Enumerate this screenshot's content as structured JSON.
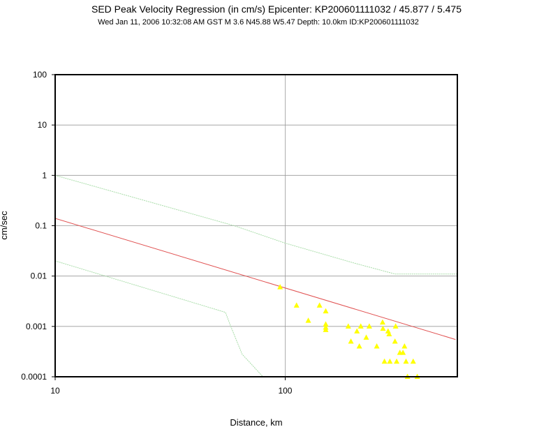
{
  "chart_data": {
    "type": "scatter",
    "title": "SED Peak Velocity Regression (in cm/s) Epicenter: KP200601111032 / 45.877 / 5.475",
    "subtitle": "Wed Jan 11, 2006 10:32:08 AM GST    M 3.6    N45.88 W5.47    Depth: 10.0km    ID:KP200601111032",
    "xlabel": "Distance, km",
    "ylabel": "cm/sec",
    "xscale": "log",
    "yscale": "log",
    "xlim": [
      10,
      560
    ],
    "ylim": [
      0.0001,
      100
    ],
    "grid": true,
    "x_ticks": [
      "10",
      "100"
    ],
    "y_ticks": [
      "0.0001",
      "0.001",
      "0.01",
      "0.1",
      "1",
      "10",
      "100"
    ],
    "series": [
      {
        "kind": "regression-line",
        "color": "#e05050",
        "points": [
          [
            10,
            0.14
          ],
          [
            550,
            0.00055
          ]
        ]
      },
      {
        "kind": "upper-bound",
        "color": "#a8dca8",
        "points": [
          [
            10,
            1.0
          ],
          [
            60,
            0.1
          ],
          [
            100,
            0.045
          ],
          [
            200,
            0.018
          ],
          [
            300,
            0.011
          ],
          [
            560,
            0.011
          ]
        ]
      },
      {
        "kind": "lower-bound",
        "color": "#a8dca8",
        "points": [
          [
            10,
            0.02
          ],
          [
            55,
            0.0019
          ],
          [
            58,
            0.001
          ],
          [
            65,
            0.00028
          ],
          [
            80,
            0.0001
          ]
        ]
      },
      {
        "kind": "observations",
        "color": "#ffff00",
        "marker": "triangle",
        "points": [
          [
            95,
            0.006
          ],
          [
            112,
            0.0026
          ],
          [
            126,
            0.0013
          ],
          [
            141,
            0.0026
          ],
          [
            150,
            0.002
          ],
          [
            150,
            0.0011
          ],
          [
            150,
            0.00095
          ],
          [
            150,
            0.00085
          ],
          [
            188,
            0.001
          ],
          [
            193,
            0.0005
          ],
          [
            205,
            0.0008
          ],
          [
            210,
            0.0004
          ],
          [
            213,
            0.001
          ],
          [
            225,
            0.0006
          ],
          [
            232,
            0.001
          ],
          [
            250,
            0.0004
          ],
          [
            265,
            0.0012
          ],
          [
            266,
            0.0009
          ],
          [
            270,
            0.0002
          ],
          [
            280,
            0.0008
          ],
          [
            283,
            0.0007
          ],
          [
            285,
            0.0002
          ],
          [
            300,
            0.0005
          ],
          [
            302,
            0.001
          ],
          [
            305,
            0.0002
          ],
          [
            315,
            0.0003
          ],
          [
            325,
            0.0003
          ],
          [
            330,
            0.0004
          ],
          [
            335,
            0.0002
          ],
          [
            340,
            0.0001
          ],
          [
            360,
            0.0002
          ],
          [
            375,
            0.0001
          ]
        ]
      }
    ]
  }
}
